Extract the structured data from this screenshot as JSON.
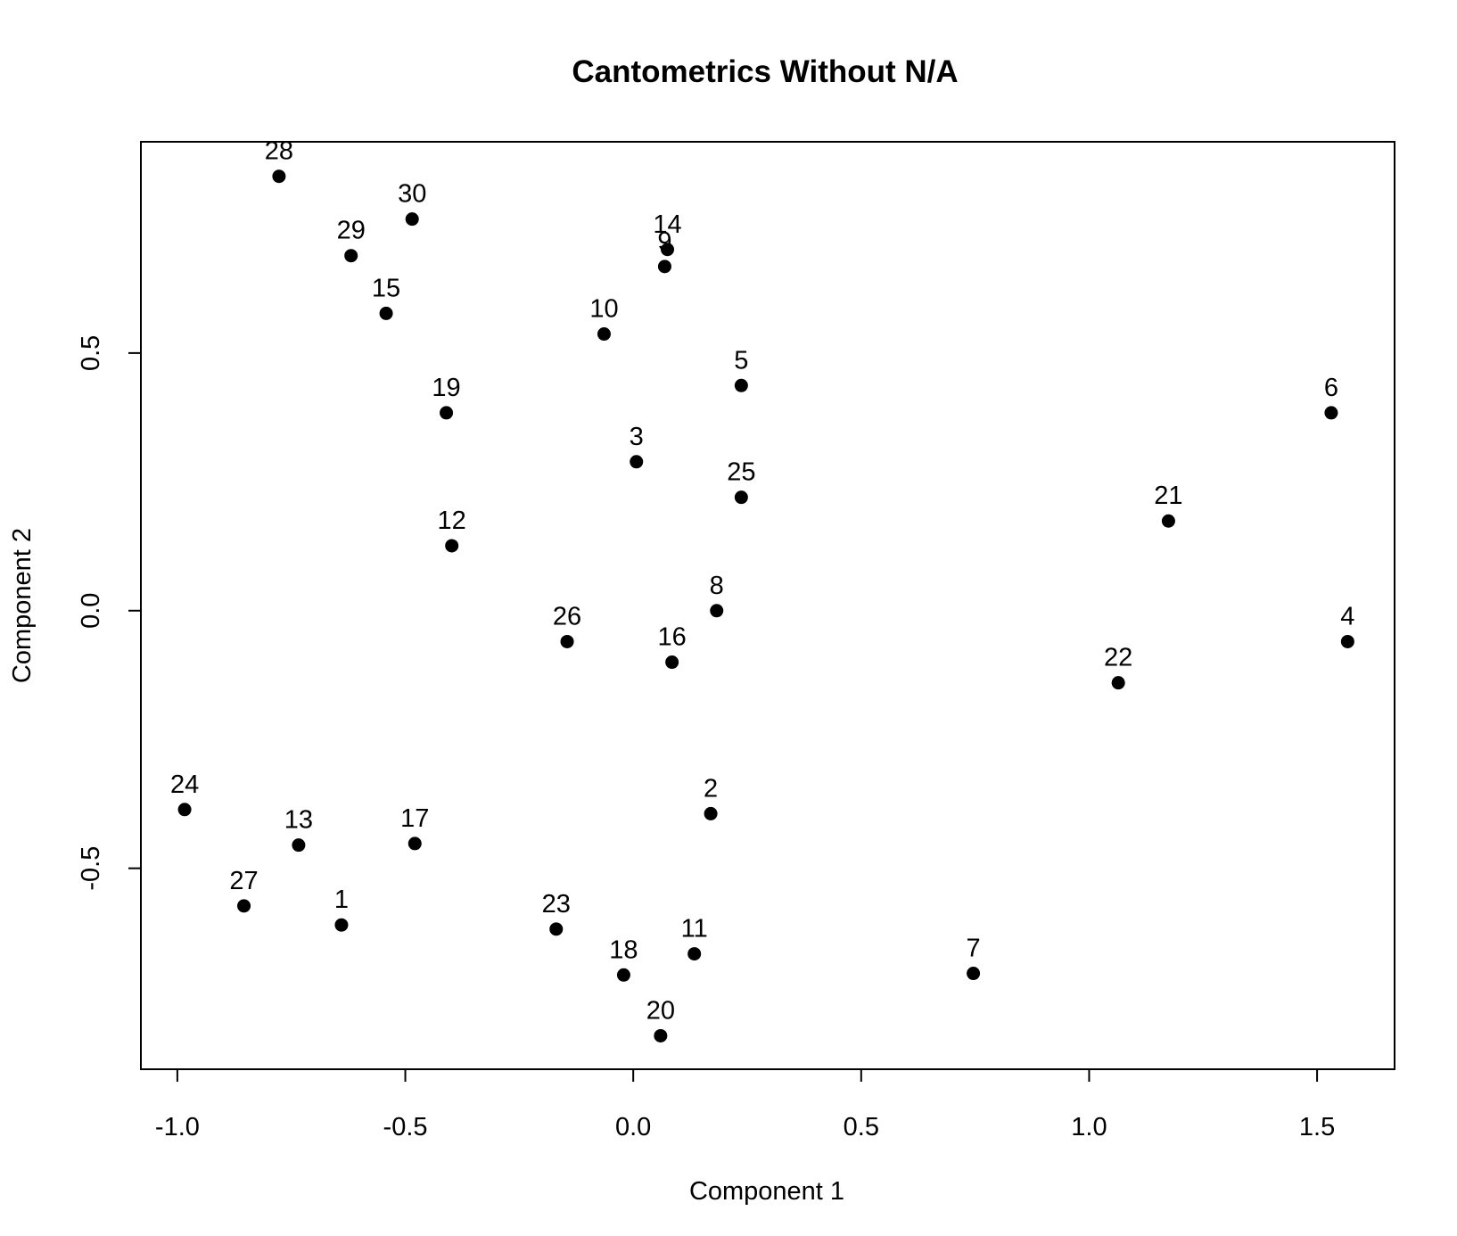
{
  "chart_data": {
    "type": "scatter",
    "title": "Cantometrics Without N/A",
    "xlabel": "Component 1",
    "ylabel": "Component 2",
    "xlim": [
      -1.08,
      1.67
    ],
    "ylim": [
      -0.89,
      0.91
    ],
    "xticks": [
      {
        "value": -1.0,
        "label": "-1.0"
      },
      {
        "value": -0.5,
        "label": "-0.5"
      },
      {
        "value": 0.0,
        "label": "0.0"
      },
      {
        "value": 0.5,
        "label": "0.5"
      },
      {
        "value": 1.0,
        "label": "1.0"
      },
      {
        "value": 1.5,
        "label": "1.5"
      }
    ],
    "yticks": [
      {
        "value": -0.5,
        "label": "-0.5"
      },
      {
        "value": 0.0,
        "label": "0.0"
      },
      {
        "value": 0.5,
        "label": "0.5"
      }
    ],
    "grid": false,
    "legend": false,
    "points": [
      {
        "label": "1",
        "x": -0.64,
        "y": -0.61
      },
      {
        "label": "2",
        "x": 0.17,
        "y": -0.394
      },
      {
        "label": "3",
        "x": 0.007,
        "y": 0.289
      },
      {
        "label": "4",
        "x": 1.567,
        "y": -0.06
      },
      {
        "label": "5",
        "x": 0.237,
        "y": 0.437
      },
      {
        "label": "6",
        "x": 1.531,
        "y": 0.384
      },
      {
        "label": "7",
        "x": 0.746,
        "y": -0.704
      },
      {
        "label": "8",
        "x": 0.183,
        "y": 0.0
      },
      {
        "label": "9",
        "x": 0.069,
        "y": 0.668
      },
      {
        "label": "10",
        "x": -0.064,
        "y": 0.537
      },
      {
        "label": "11",
        "x": 0.134,
        "y": -0.666
      },
      {
        "label": "12",
        "x": -0.398,
        "y": 0.126
      },
      {
        "label": "13",
        "x": -0.734,
        "y": -0.455
      },
      {
        "label": "14",
        "x": 0.075,
        "y": 0.701
      },
      {
        "label": "15",
        "x": -0.542,
        "y": 0.577
      },
      {
        "label": "16",
        "x": 0.085,
        "y": -0.1
      },
      {
        "label": "17",
        "x": -0.479,
        "y": -0.452
      },
      {
        "label": "18",
        "x": -0.021,
        "y": -0.707
      },
      {
        "label": "19",
        "x": -0.41,
        "y": 0.384
      },
      {
        "label": "20",
        "x": 0.06,
        "y": -0.825
      },
      {
        "label": "21",
        "x": 1.174,
        "y": 0.174
      },
      {
        "label": "22",
        "x": 1.064,
        "y": -0.14
      },
      {
        "label": "23",
        "x": -0.169,
        "y": -0.618
      },
      {
        "label": "24",
        "x": -0.984,
        "y": -0.386
      },
      {
        "label": "25",
        "x": 0.237,
        "y": 0.22
      },
      {
        "label": "26",
        "x": -0.145,
        "y": -0.06
      },
      {
        "label": "27",
        "x": -0.854,
        "y": -0.573
      },
      {
        "label": "28",
        "x": -0.777,
        "y": 0.843
      },
      {
        "label": "29",
        "x": -0.619,
        "y": 0.689
      },
      {
        "label": "30",
        "x": -0.485,
        "y": 0.76
      }
    ]
  }
}
